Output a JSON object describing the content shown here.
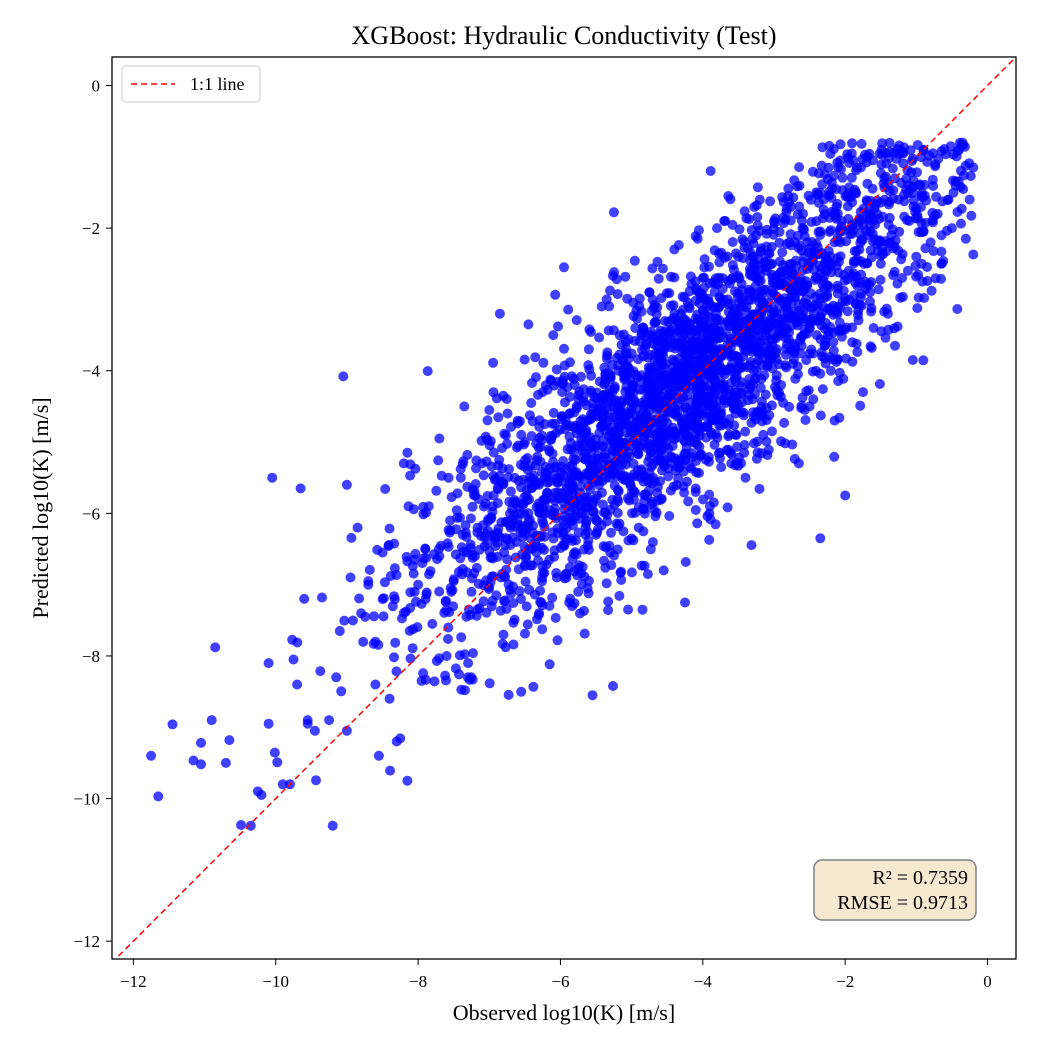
{
  "chart_data": {
    "type": "scatter",
    "title": "XGBoost: Hydraulic Conductivity (Test)",
    "xlabel": "Observed log10(K) [m/s]",
    "ylabel": "Predicted log10(K) [m/s]",
    "xlim": [
      -12.3,
      0.4
    ],
    "ylim": [
      -12.25,
      0.4
    ],
    "xticks": [
      -12,
      -10,
      -8,
      -6,
      -4,
      -2,
      0
    ],
    "yticks": [
      -12,
      -10,
      -8,
      -6,
      -4,
      -2,
      0
    ],
    "xtick_labels": [
      "−12",
      "−10",
      "−8",
      "−6",
      "−4",
      "−2",
      "0"
    ],
    "ytick_labels": [
      "−12",
      "−10",
      "−8",
      "−6",
      "−4",
      "−2",
      "0"
    ],
    "grid": false,
    "legend": {
      "placement": "top-left",
      "entries": [
        {
          "label": "1:1 line",
          "color": "#ff0000",
          "style": "dashed"
        }
      ]
    },
    "reference_line": {
      "label": "1:1 line",
      "slope": 1,
      "intercept": 0,
      "color": "#ff0000"
    },
    "annotation": {
      "placement": "bottom-right",
      "lines": [
        "R² = 0.7359",
        "RMSE = 0.9713"
      ],
      "background": "#f6e9d2"
    },
    "series": [
      {
        "marker_color": "#0000ff",
        "approx_point_count": 3000,
        "points": [
          [
            -11.75,
            -9.4
          ],
          [
            -11.65,
            -9.97
          ],
          [
            -11.45,
            -8.96
          ],
          [
            -11.05,
            -9.22
          ],
          [
            -11.05,
            -9.52
          ],
          [
            -10.9,
            -8.9
          ],
          [
            -10.85,
            -7.88
          ],
          [
            -10.65,
            -9.18
          ],
          [
            -10.7,
            -9.5
          ],
          [
            -10.35,
            -10.38
          ],
          [
            -10.25,
            -9.9
          ],
          [
            -10.2,
            -9.95
          ],
          [
            -10.1,
            -8.1
          ],
          [
            -10.1,
            -8.95
          ],
          [
            -10.05,
            -5.5
          ],
          [
            -9.9,
            -9.8
          ],
          [
            -9.8,
            -9.8
          ],
          [
            -9.75,
            -8.05
          ],
          [
            -9.7,
            -8.4
          ],
          [
            -9.65,
            -5.65
          ],
          [
            -9.6,
            -7.2
          ],
          [
            -9.55,
            -8.9
          ],
          [
            -9.45,
            -9.05
          ],
          [
            -9.35,
            -7.18
          ],
          [
            -9.25,
            -8.9
          ],
          [
            -9.2,
            -10.38
          ],
          [
            -9.1,
            -7.65
          ],
          [
            -9.0,
            -9.05
          ],
          [
            -9.05,
            -4.08
          ],
          [
            -9.0,
            -5.6
          ],
          [
            -8.95,
            -6.9
          ],
          [
            -8.85,
            -6.2
          ],
          [
            -8.8,
            -7.4
          ],
          [
            -8.7,
            -7.0
          ],
          [
            -8.6,
            -7.8
          ],
          [
            -8.55,
            -9.4
          ],
          [
            -8.5,
            -6.55
          ],
          [
            -8.4,
            -8.6
          ],
          [
            -8.3,
            -9.2
          ],
          [
            -8.2,
            -5.3
          ],
          [
            -8.15,
            -5.15
          ],
          [
            -8.15,
            -9.75
          ],
          [
            -8.0,
            -7.0
          ],
          [
            -7.9,
            -6.5
          ],
          [
            -7.85,
            -5.9
          ],
          [
            -7.8,
            -7.55
          ],
          [
            -7.7,
            -4.95
          ],
          [
            -7.6,
            -8.0
          ],
          [
            -7.5,
            -6.95
          ],
          [
            -7.4,
            -5.5
          ],
          [
            -7.35,
            -4.5
          ],
          [
            -7.3,
            -8.3
          ],
          [
            -7.2,
            -6.6
          ],
          [
            -7.1,
            -5.3
          ],
          [
            -7.0,
            -4.55
          ],
          [
            -6.95,
            -5.9
          ],
          [
            -6.85,
            -3.2
          ],
          [
            -6.8,
            -7.7
          ],
          [
            -6.7,
            -6.2
          ],
          [
            -6.6,
            -4.7
          ],
          [
            -6.5,
            -5.0
          ],
          [
            -6.45,
            -3.35
          ],
          [
            -6.4,
            -6.5
          ],
          [
            -6.3,
            -7.4
          ],
          [
            -6.25,
            -4.3
          ],
          [
            -6.2,
            -5.8
          ],
          [
            -6.1,
            -3.5
          ],
          [
            -6.05,
            -6.9
          ],
          [
            -5.95,
            -2.55
          ],
          [
            -5.9,
            -5.1
          ],
          [
            -5.8,
            -4.2
          ],
          [
            -5.75,
            -7.1
          ],
          [
            -5.7,
            -6.0
          ],
          [
            -5.6,
            -3.7
          ],
          [
            -5.55,
            -8.55
          ],
          [
            -5.5,
            -5.4
          ],
          [
            -5.4,
            -4.65
          ],
          [
            -5.35,
            -3.0
          ],
          [
            -5.3,
            -6.55
          ],
          [
            -5.2,
            -5.8
          ],
          [
            -5.1,
            -4.1
          ],
          [
            -5.05,
            -7.35
          ],
          [
            -5.0,
            -5.05
          ],
          [
            -4.95,
            -3.4
          ],
          [
            -4.9,
            -6.2
          ],
          [
            -4.85,
            -4.6
          ],
          [
            -4.75,
            -2.9
          ],
          [
            -4.7,
            -5.5
          ],
          [
            -4.6,
            -4.0
          ],
          [
            -4.55,
            -6.8
          ],
          [
            -4.5,
            -3.6
          ],
          [
            -4.45,
            -5.2
          ],
          [
            -4.4,
            -2.3
          ],
          [
            -4.3,
            -4.4
          ],
          [
            -4.25,
            -7.25
          ],
          [
            -4.2,
            -3.1
          ],
          [
            -4.1,
            -5.7
          ],
          [
            -4.05,
            -4.8
          ],
          [
            -4.0,
            -2.7
          ],
          [
            -3.95,
            -3.9
          ],
          [
            -3.9,
            -5.9
          ],
          [
            -3.85,
            -3.4
          ],
          [
            -3.8,
            -2.0
          ],
          [
            -3.75,
            -4.6
          ],
          [
            -3.7,
            -1.9
          ],
          [
            -3.65,
            -3.0
          ],
          [
            -3.6,
            -5.3
          ],
          [
            -3.55,
            -4.1
          ],
          [
            -3.5,
            -2.4
          ],
          [
            -3.45,
            -3.6
          ],
          [
            -3.4,
            -5.5
          ],
          [
            -3.35,
            -2.9
          ],
          [
            -3.3,
            -4.4
          ],
          [
            -3.25,
            -2.1
          ],
          [
            -3.2,
            -3.3
          ],
          [
            -3.15,
            -4.9
          ],
          [
            -3.1,
            -2.6
          ],
          [
            -3.05,
            -3.8
          ],
          [
            -3.0,
            -1.9
          ],
          [
            -2.95,
            -2.8
          ],
          [
            -2.9,
            -4.2
          ],
          [
            -2.85,
            -3.4
          ],
          [
            -2.8,
            -1.55
          ],
          [
            -2.75,
            -2.5
          ],
          [
            -2.7,
            -3.7
          ],
          [
            -2.65,
            -5.3
          ],
          [
            -2.6,
            -2.0
          ],
          [
            -2.55,
            -3.0
          ],
          [
            -2.5,
            -4.5
          ],
          [
            -2.45,
            -2.4
          ],
          [
            -2.4,
            -3.5
          ],
          [
            -2.35,
            -6.35
          ],
          [
            -2.3,
            -1.6
          ],
          [
            -2.25,
            -2.8
          ],
          [
            -2.2,
            -4.0
          ],
          [
            -2.15,
            -2.2
          ],
          [
            -2.1,
            -3.1
          ],
          [
            -2.05,
            -1.9
          ],
          [
            -2.0,
            -5.75
          ],
          [
            -1.95,
            -2.6
          ],
          [
            -1.9,
            -3.6
          ],
          [
            -1.85,
            -1.5
          ],
          [
            -1.8,
            -2.3
          ],
          [
            -1.75,
            -4.3
          ],
          [
            -1.7,
            -1.08
          ],
          [
            -1.65,
            -2.9
          ],
          [
            -1.6,
            -3.4
          ],
          [
            -1.55,
            -1.8
          ],
          [
            -1.5,
            -2.5
          ],
          [
            -1.45,
            -1.3
          ],
          [
            -1.4,
            -3.2
          ],
          [
            -1.35,
            -2.1
          ],
          [
            -1.3,
            -3.65
          ],
          [
            -1.25,
            -1.6
          ],
          [
            -1.2,
            -2.7
          ],
          [
            -1.1,
            -1.9
          ],
          [
            -1.05,
            -3.85
          ],
          [
            -1.0,
            -2.4
          ],
          [
            -0.95,
            -1.4
          ],
          [
            -0.9,
            -0.9
          ],
          [
            -0.8,
            -2.2
          ],
          [
            -0.7,
            -1.8
          ],
          [
            -0.65,
            -2.5
          ],
          [
            -0.55,
            -1.6
          ],
          [
            -0.45,
            -1.4
          ],
          [
            -0.35,
            -0.8
          ],
          [
            -0.25,
            -1.6
          ],
          [
            -0.2,
            -1.15
          ],
          [
            -0.2,
            -2.37
          ],
          [
            -0.5,
            -2.0
          ],
          [
            -6.55,
            -4.9
          ],
          [
            -6.9,
            -6.3
          ],
          [
            -7.55,
            -6.1
          ],
          [
            -8.05,
            -6.65
          ],
          [
            -8.7,
            -6.95
          ],
          [
            -9.15,
            -8.3
          ],
          [
            -9.55,
            -8.95
          ],
          [
            -7.95,
            -8.35
          ],
          [
            -7.15,
            -5.8
          ],
          [
            -6.3,
            -5.6
          ],
          [
            -5.85,
            -5.1
          ],
          [
            -4.8,
            -4.4
          ],
          [
            -4.35,
            -3.95
          ],
          [
            -3.65,
            -3.7
          ],
          [
            -2.75,
            -2.95
          ],
          [
            -2.25,
            -2.45
          ],
          [
            -1.65,
            -2.05
          ],
          [
            -5.65,
            -6.3
          ],
          [
            -6.45,
            -6.0
          ],
          [
            -7.25,
            -7.1
          ]
        ]
      }
    ]
  }
}
